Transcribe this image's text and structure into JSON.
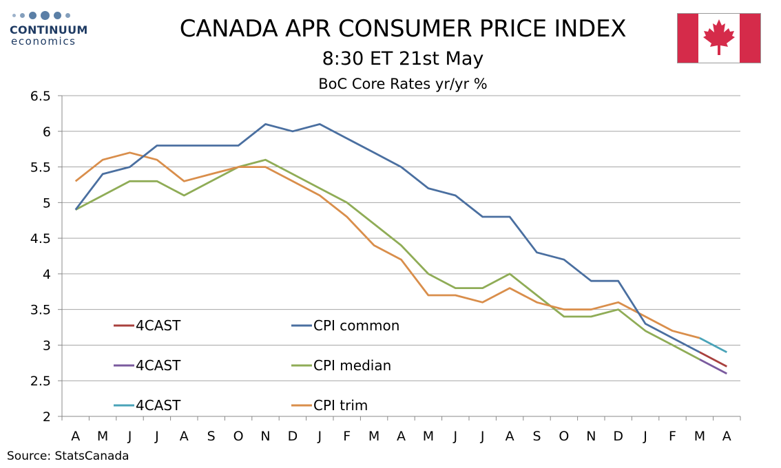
{
  "logo": {
    "name": "CONTINUUM",
    "sub": "economics"
  },
  "header": {
    "title": "CANADA APR CONSUMER PRICE INDEX",
    "subtitle": "8:30 ET 21st May",
    "subtitle2": "BoC Core Rates yr/yr %"
  },
  "source": "Source: StatsCanada",
  "colors": {
    "cpi_common": "#4a6fa0",
    "cpi_median": "#8fac56",
    "cpi_trim": "#d98e4b",
    "fc_common": "#4aa3b8",
    "fc_median": "#7a5a9e",
    "fc_trim": "#a8403d",
    "flag_red": "#d52b4a"
  },
  "chart_data": {
    "type": "line",
    "title": "BoC Core Rates yr/yr %",
    "categories": [
      "A",
      "M",
      "J",
      "J",
      "A",
      "S",
      "O",
      "N",
      "D",
      "J",
      "F",
      "M",
      "A",
      "M",
      "J",
      "J",
      "A",
      "S",
      "O",
      "N",
      "D",
      "J",
      "F",
      "M",
      "A"
    ],
    "ylim": [
      2,
      6.5
    ],
    "yticks": [
      "6.5",
      "6",
      "5.5",
      "5",
      "4.5",
      "4",
      "3.5",
      "3",
      "2.5",
      "2"
    ],
    "grid": true,
    "legend_placement": "bottom-left",
    "series": [
      {
        "name": "CPI common",
        "values": [
          4.9,
          5.4,
          5.5,
          5.8,
          5.8,
          5.8,
          5.8,
          6.1,
          6.0,
          6.1,
          5.9,
          5.7,
          5.5,
          5.2,
          5.1,
          4.8,
          4.8,
          4.3,
          4.2,
          3.9,
          3.9,
          3.3,
          3.1,
          2.9,
          null
        ]
      },
      {
        "name": "CPI median",
        "values": [
          4.9,
          5.1,
          5.3,
          5.3,
          5.1,
          5.3,
          5.5,
          5.6,
          5.4,
          5.2,
          5.0,
          4.7,
          4.4,
          4.0,
          3.8,
          3.8,
          4.0,
          3.7,
          3.4,
          3.4,
          3.5,
          3.2,
          3.0,
          2.8,
          null
        ]
      },
      {
        "name": "CPI trim",
        "values": [
          5.3,
          5.6,
          5.7,
          5.6,
          5.3,
          5.4,
          5.5,
          5.5,
          5.3,
          5.1,
          4.8,
          4.4,
          4.2,
          3.7,
          3.7,
          3.6,
          3.8,
          3.6,
          3.5,
          3.5,
          3.6,
          3.4,
          3.2,
          3.1,
          null
        ]
      },
      {
        "name": "4CAST",
        "values": [
          null,
          null,
          null,
          null,
          null,
          null,
          null,
          null,
          null,
          null,
          null,
          null,
          null,
          null,
          null,
          null,
          null,
          null,
          null,
          null,
          null,
          null,
          null,
          3.1,
          2.9
        ]
      },
      {
        "name": "4CAST",
        "values": [
          null,
          null,
          null,
          null,
          null,
          null,
          null,
          null,
          null,
          null,
          null,
          null,
          null,
          null,
          null,
          null,
          null,
          null,
          null,
          null,
          null,
          null,
          null,
          2.8,
          2.6
        ]
      },
      {
        "name": "4CAST",
        "values": [
          null,
          null,
          null,
          null,
          null,
          null,
          null,
          null,
          null,
          null,
          null,
          null,
          null,
          null,
          null,
          null,
          null,
          null,
          null,
          null,
          null,
          null,
          null,
          2.9,
          2.7
        ]
      }
    ],
    "legend": [
      {
        "label": "4CAST",
        "color_key": "fc_trim"
      },
      {
        "label": "CPI common",
        "color_key": "cpi_common"
      },
      {
        "label": "4CAST",
        "color_key": "fc_median"
      },
      {
        "label": "CPI median",
        "color_key": "cpi_median"
      },
      {
        "label": "4CAST",
        "color_key": "fc_common"
      },
      {
        "label": "CPI trim",
        "color_key": "cpi_trim"
      }
    ]
  }
}
